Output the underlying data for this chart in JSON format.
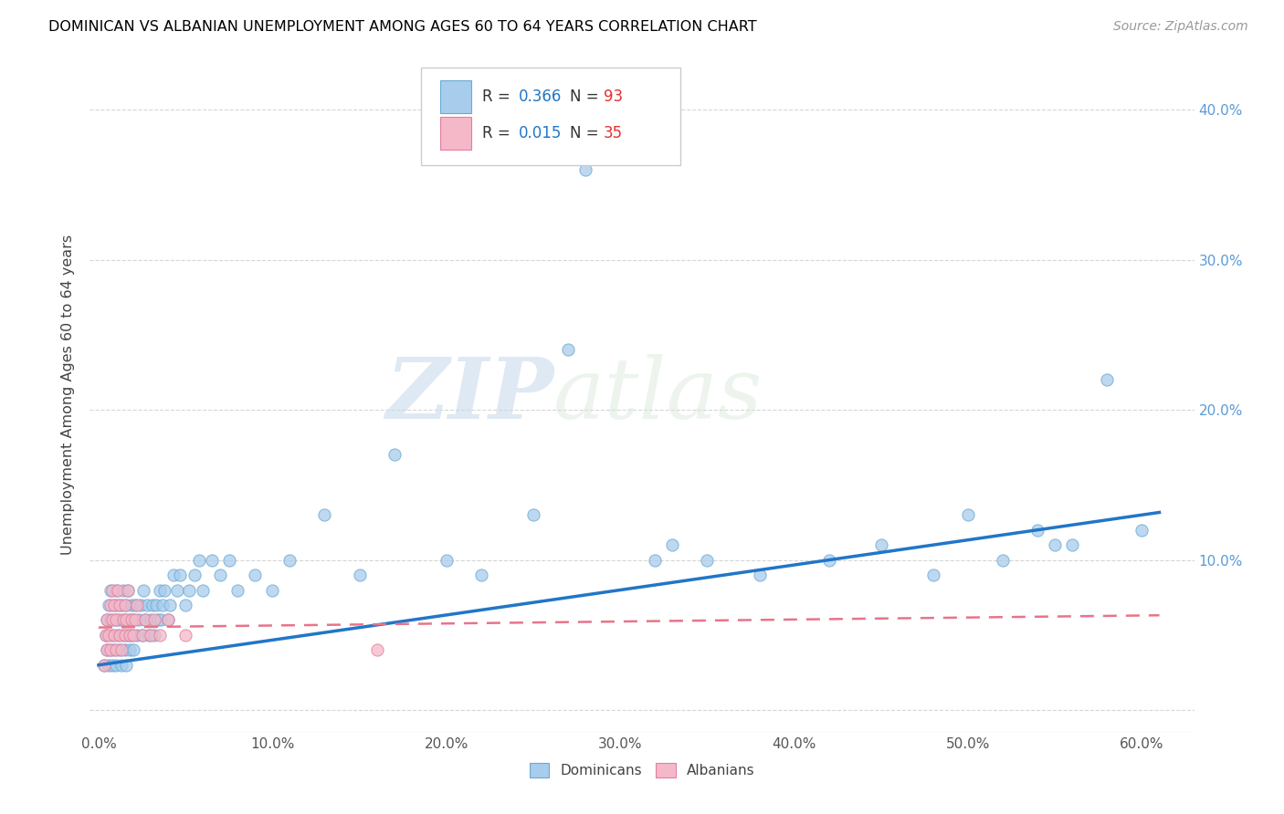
{
  "title": "DOMINICAN VS ALBANIAN UNEMPLOYMENT AMONG AGES 60 TO 64 YEARS CORRELATION CHART",
  "source": "Source: ZipAtlas.com",
  "ylabel": "Unemployment Among Ages 60 to 64 years",
  "dominican_color": "#A8CCEC",
  "dominican_edge": "#6AAAD4",
  "albanian_color": "#F5B8C8",
  "albanian_edge": "#E080A0",
  "trend_dominican_color": "#2176C7",
  "trend_albanian_color": "#E8748A",
  "legend_R_color": "#2176C7",
  "legend_N_color": "#E83030",
  "watermark_zip": "ZIP",
  "watermark_atlas": "atlas",
  "dom_x": [
    0.003,
    0.004,
    0.005,
    0.005,
    0.006,
    0.006,
    0.007,
    0.007,
    0.007,
    0.008,
    0.008,
    0.009,
    0.009,
    0.01,
    0.01,
    0.01,
    0.011,
    0.011,
    0.012,
    0.012,
    0.013,
    0.013,
    0.014,
    0.014,
    0.015,
    0.015,
    0.016,
    0.016,
    0.017,
    0.017,
    0.018,
    0.018,
    0.019,
    0.019,
    0.02,
    0.02,
    0.021,
    0.022,
    0.023,
    0.024,
    0.025,
    0.026,
    0.027,
    0.028,
    0.029,
    0.03,
    0.031,
    0.032,
    0.033,
    0.034,
    0.035,
    0.036,
    0.037,
    0.038,
    0.04,
    0.041,
    0.043,
    0.045,
    0.047,
    0.05,
    0.052,
    0.055,
    0.058,
    0.06,
    0.065,
    0.07,
    0.075,
    0.08,
    0.09,
    0.1,
    0.11,
    0.13,
    0.15,
    0.17,
    0.2,
    0.22,
    0.25,
    0.28,
    0.32,
    0.35,
    0.38,
    0.42,
    0.45,
    0.48,
    0.5,
    0.52,
    0.54,
    0.56,
    0.58,
    0.6,
    0.27,
    0.33,
    0.55
  ],
  "dom_y": [
    0.03,
    0.05,
    0.04,
    0.06,
    0.03,
    0.07,
    0.04,
    0.06,
    0.08,
    0.03,
    0.05,
    0.07,
    0.04,
    0.03,
    0.06,
    0.08,
    0.05,
    0.07,
    0.04,
    0.06,
    0.03,
    0.07,
    0.05,
    0.08,
    0.04,
    0.06,
    0.03,
    0.07,
    0.05,
    0.08,
    0.04,
    0.06,
    0.05,
    0.07,
    0.04,
    0.06,
    0.07,
    0.05,
    0.06,
    0.07,
    0.05,
    0.08,
    0.06,
    0.07,
    0.05,
    0.06,
    0.07,
    0.05,
    0.07,
    0.06,
    0.08,
    0.06,
    0.07,
    0.08,
    0.06,
    0.07,
    0.09,
    0.08,
    0.09,
    0.07,
    0.08,
    0.09,
    0.1,
    0.08,
    0.1,
    0.09,
    0.1,
    0.08,
    0.09,
    0.08,
    0.1,
    0.13,
    0.09,
    0.17,
    0.1,
    0.09,
    0.13,
    0.36,
    0.1,
    0.1,
    0.09,
    0.1,
    0.11,
    0.09,
    0.13,
    0.1,
    0.12,
    0.11,
    0.22,
    0.12,
    0.24,
    0.11,
    0.11
  ],
  "alb_x": [
    0.003,
    0.004,
    0.005,
    0.005,
    0.006,
    0.007,
    0.007,
    0.008,
    0.008,
    0.009,
    0.009,
    0.01,
    0.01,
    0.011,
    0.012,
    0.012,
    0.013,
    0.014,
    0.015,
    0.015,
    0.016,
    0.017,
    0.018,
    0.019,
    0.02,
    0.021,
    0.022,
    0.025,
    0.027,
    0.03,
    0.032,
    0.035,
    0.04,
    0.05,
    0.16
  ],
  "alb_y": [
    0.03,
    0.05,
    0.04,
    0.06,
    0.05,
    0.07,
    0.04,
    0.06,
    0.08,
    0.05,
    0.07,
    0.04,
    0.06,
    0.08,
    0.05,
    0.07,
    0.04,
    0.06,
    0.05,
    0.07,
    0.06,
    0.08,
    0.05,
    0.06,
    0.05,
    0.06,
    0.07,
    0.05,
    0.06,
    0.05,
    0.06,
    0.05,
    0.06,
    0.05,
    0.04
  ],
  "xlim": [
    -0.005,
    0.63
  ],
  "ylim": [
    -0.015,
    0.435
  ],
  "xticks": [
    0.0,
    0.1,
    0.2,
    0.3,
    0.4,
    0.5,
    0.6
  ],
  "xtick_labels": [
    "0.0%",
    "10.0%",
    "20.0%",
    "30.0%",
    "40.0%",
    "50.0%",
    "60.0%"
  ],
  "yticks": [
    0.0,
    0.1,
    0.2,
    0.3,
    0.4
  ],
  "ytick_labels": [
    "",
    "10.0%",
    "20.0%",
    "30.0%",
    "40.0%"
  ]
}
